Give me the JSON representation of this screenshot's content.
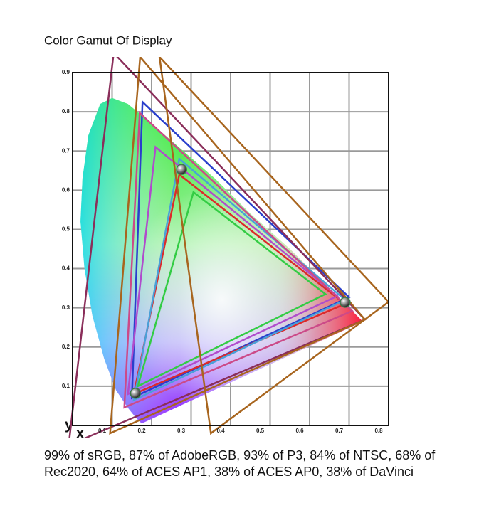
{
  "chart_data": {
    "type": "gamut",
    "title": "Color Gamut Of Display",
    "description": "99% of sRGB, 87% of AdobeRGB, 93% of P3, 84% of NTSC, 68% of Rec2020, 64% of ACES AP1, 38% of ACES AP0, 38% of DaVinci",
    "xlabel": "x",
    "ylabel": "y",
    "xlim": [
      0,
      0.8
    ],
    "ylim": [
      0,
      0.9
    ],
    "xticks": [
      0.1,
      0.2,
      0.3,
      0.4,
      0.5,
      0.6,
      0.7,
      0.8
    ],
    "yticks": [
      0.1,
      0.2,
      0.3,
      0.4,
      0.5,
      0.6,
      0.7,
      0.8,
      0.9
    ],
    "grid": true,
    "locus": {
      "x": [
        0.175,
        0.16,
        0.14,
        0.11,
        0.08,
        0.05,
        0.03,
        0.02,
        0.025,
        0.04,
        0.07,
        0.1,
        0.14,
        0.2,
        0.28,
        0.36,
        0.45,
        0.55,
        0.65,
        0.735
      ],
      "y": [
        0.005,
        0.02,
        0.045,
        0.09,
        0.17,
        0.28,
        0.4,
        0.52,
        0.63,
        0.74,
        0.82,
        0.835,
        0.82,
        0.77,
        0.7,
        0.63,
        0.54,
        0.45,
        0.35,
        0.265
      ]
    },
    "series": [
      {
        "color": "#33cc44",
        "x": [
          0.306,
          0.64,
          0.165
        ],
        "y": [
          0.595,
          0.335,
          0.1
        ]
      },
      {
        "color": "#2a3fcc",
        "x": [
          0.177,
          0.7,
          0.15
        ],
        "y": [
          0.825,
          0.327,
          0.07
        ]
      },
      {
        "color": "#dd2a2a",
        "x": [
          0.27,
          0.69,
          0.155
        ],
        "y": [
          0.64,
          0.31,
          0.08
        ]
      },
      {
        "color": "#4aa0d8",
        "x": [
          0.27,
          0.69,
          0.155
        ],
        "y": [
          0.68,
          0.32,
          0.065
        ]
      },
      {
        "color": "#b04ccc",
        "x": [
          0.21,
          0.67,
          0.14
        ],
        "y": [
          0.71,
          0.33,
          0.08
        ]
      },
      {
        "color": "#cc4a88",
        "x": [
          0.17,
          0.708,
          0.131
        ],
        "y": [
          0.797,
          0.292,
          0.046
        ]
      },
      {
        "color": "#8a2e5a",
        "x": [
          0.104,
          0.74,
          -0.01
        ],
        "y": [
          0.95,
          0.27,
          -0.05
        ]
      },
      {
        "color": "#a8651e",
        "x": [
          0.171,
          0.74,
          0.095
        ],
        "y": [
          0.94,
          0.27,
          -0.02
        ]
      },
      {
        "color": "#a8651e",
        "x": [
          0.22,
          0.8,
          0.35
        ],
        "y": [
          0.94,
          0.315,
          -0.02
        ]
      }
    ],
    "primaries": {
      "color": "#3a7a4a",
      "x": [
        0.276,
        0.69,
        0.159
      ],
      "y": [
        0.653,
        0.314,
        0.082
      ]
    }
  }
}
